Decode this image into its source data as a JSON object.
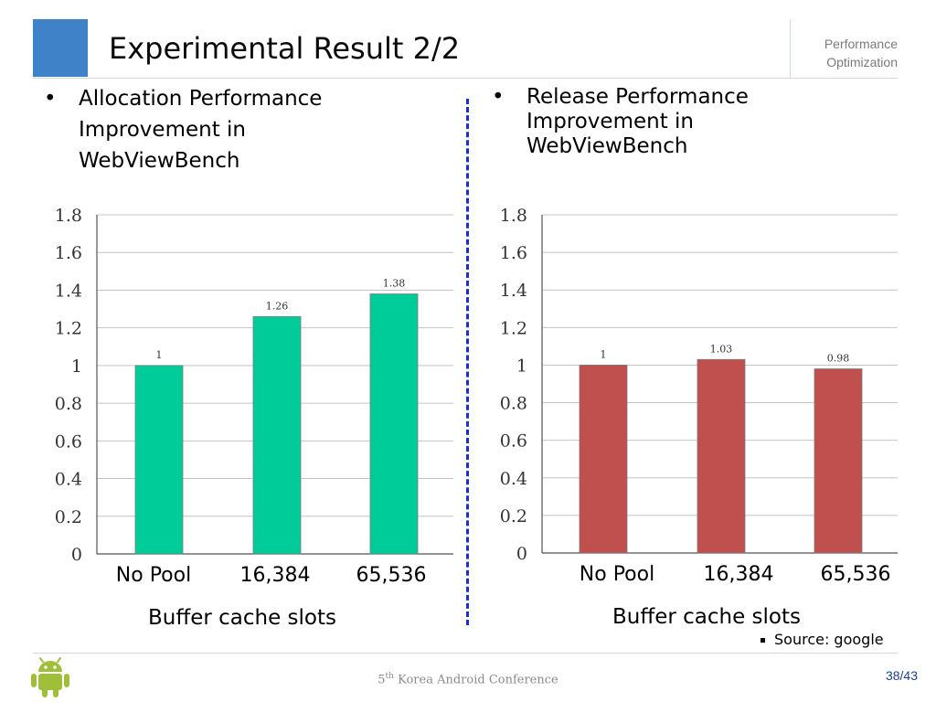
{
  "slide": {
    "title": "Experimental Result 2/2",
    "section_line1": "Performance",
    "section_line2": "Optimization",
    "bullet_char": "•",
    "left_bullet_lines": [
      "Allocation Performance",
      "Improvement in",
      "WebViewBench"
    ],
    "right_bullet_lines": [
      "Release Performance",
      "Improvement in",
      "WebViewBench"
    ],
    "source_text": "Source: google",
    "footer_ordinal": "5",
    "footer_sup": "th",
    "footer_rest": " Korea Android Conference",
    "page_number": "38/43",
    "logo_icon": "android-robot-icon"
  },
  "chart_data": [
    {
      "type": "bar",
      "categories": [
        "No Pool",
        "16,384",
        "65,536"
      ],
      "values": [
        1,
        1.26,
        1.38
      ],
      "data_labels": [
        "1",
        "1.26",
        "1.38"
      ],
      "xlabel": "Buffer cache slots",
      "ylabel": "",
      "ylim": [
        0,
        1.8
      ],
      "yticks": [
        "0",
        "0.2",
        "0.4",
        "0.6",
        "0.8",
        "1",
        "1.2",
        "1.4",
        "1.6",
        "1.8"
      ],
      "grid": true,
      "color": "#00cc99"
    },
    {
      "type": "bar",
      "categories": [
        "No Pool",
        "16,384",
        "65,536"
      ],
      "values": [
        1,
        1.03,
        0.98
      ],
      "data_labels": [
        "1",
        "1.03",
        "0.98"
      ],
      "xlabel": "Buffer cache slots",
      "ylabel": "",
      "ylim": [
        0,
        1.8
      ],
      "yticks": [
        "0",
        "0.2",
        "0.4",
        "0.6",
        "0.8",
        "1",
        "1.2",
        "1.4",
        "1.6",
        "1.8"
      ],
      "grid": true,
      "color": "#c0504d"
    }
  ]
}
